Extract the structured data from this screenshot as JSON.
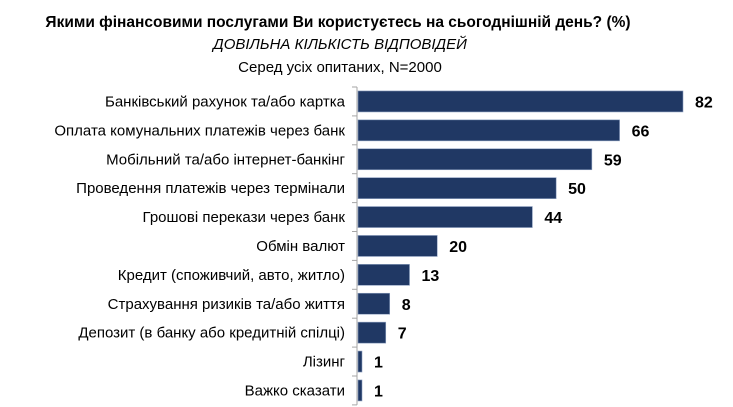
{
  "chart_data": {
    "type": "bar",
    "orientation": "horizontal",
    "title": "Якими фінансовими послугами Ви користуєтесь на сьогоднішній день? (%)",
    "subtitle": "ДОВІЛЬНА КІЛЬКІСТЬ ВІДПОВІДЕЙ",
    "note": "Серед усіх опитаних, N=2000",
    "categories": [
      "Банківський рахунок та/або картка",
      "Оплата комунальних платежів через банк",
      "Мобільний та/або інтернет-банкінг",
      "Проведення платежів через термінали",
      "Грошові перекази через банк",
      "Обмін валют",
      "Кредит (споживчий, авто, житло)",
      "Страхування ризиків та/або життя",
      "Депозит (в банку або кредитній спілці)",
      "Лізинг",
      "Важко сказати"
    ],
    "values": [
      82,
      66,
      59,
      50,
      44,
      20,
      13,
      8,
      7,
      1,
      1
    ],
    "xlim": [
      0,
      82
    ],
    "grid": false,
    "legend": "none",
    "bar_color": "#203864",
    "data_labels": true
  }
}
